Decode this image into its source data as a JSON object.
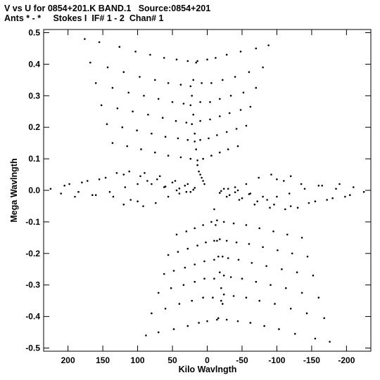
{
  "header": {
    "title_line1": "V vs U for 0854+201.K BAND.1   Source:0854+201",
    "title_line2": "Ants * - *     Stokes I  IF# 1 - 2  Chan# 1"
  },
  "chart_data": {
    "type": "scatter",
    "title": "V vs U for 0854+201.K BAND.1   Source:0854+201",
    "subtitle": "Ants * - *     Stokes I  IF# 1 - 2  Chan# 1",
    "xlabel": "Kilo Wavlngth",
    "ylabel": "Mega Wavlngth",
    "xlim": [
      235,
      -235
    ],
    "ylim": [
      -0.51,
      0.51
    ],
    "x_reversed": true,
    "x_ticks": [
      200,
      150,
      100,
      50,
      0,
      -50,
      -100,
      -150,
      -200
    ],
    "x_tick_labels": [
      "200",
      "150",
      "100",
      "50",
      "0",
      "-50",
      "-100",
      "-150",
      "-200"
    ],
    "y_ticks": [
      0.5,
      0.4,
      0.3,
      0.2,
      0.1,
      0.0,
      -0.1,
      -0.2,
      -0.3,
      -0.4,
      -0.5
    ],
    "y_tick_labels": [
      "0.5",
      "0.4",
      "0.3",
      "0.2",
      "0.1",
      "0.0",
      "-0.1",
      "-0.2",
      "-0.3",
      "-0.4",
      "-0.5"
    ],
    "grid": false,
    "marker_color": "#000000",
    "series": [
      {
        "values": [
          [
            176,
            0.48
          ],
          [
            155,
            0.47
          ],
          [
            126,
            0.455
          ],
          [
            103,
            0.44
          ],
          [
            82,
            0.43
          ],
          [
            62,
            0.42
          ],
          [
            44,
            0.415
          ],
          [
            28,
            0.41
          ],
          [
            16,
            0.405
          ],
          [
            14,
            0.41
          ],
          [
            0,
            0.415
          ],
          [
            -12,
            0.42
          ],
          [
            -28,
            0.43
          ],
          [
            -48,
            0.44
          ],
          [
            -70,
            0.45
          ],
          [
            -88,
            0.46
          ],
          [
            168,
            0.405
          ],
          [
            143,
            0.39
          ],
          [
            120,
            0.375
          ],
          [
            97,
            0.36
          ],
          [
            75,
            0.35
          ],
          [
            56,
            0.34
          ],
          [
            38,
            0.335
          ],
          [
            24,
            0.33
          ],
          [
            20,
            0.35
          ],
          [
            8,
            0.34
          ],
          [
            -6,
            0.34
          ],
          [
            -22,
            0.35
          ],
          [
            -40,
            0.36
          ],
          [
            -60,
            0.375
          ],
          [
            -80,
            0.39
          ],
          [
            160,
            0.34
          ],
          [
            136,
            0.325
          ],
          [
            113,
            0.31
          ],
          [
            91,
            0.3
          ],
          [
            70,
            0.29
          ],
          [
            50,
            0.28
          ],
          [
            34,
            0.275
          ],
          [
            24,
            0.27
          ],
          [
            10,
            0.28
          ],
          [
            -4,
            0.28
          ],
          [
            -18,
            0.29
          ],
          [
            -34,
            0.3
          ],
          [
            -52,
            0.31
          ],
          [
            -70,
            0.325
          ],
          [
            152,
            0.27
          ],
          [
            129,
            0.26
          ],
          [
            107,
            0.25
          ],
          [
            85,
            0.24
          ],
          [
            64,
            0.23
          ],
          [
            45,
            0.22
          ],
          [
            30,
            0.215
          ],
          [
            22,
            0.21
          ],
          [
            10,
            0.22
          ],
          [
            -4,
            0.225
          ],
          [
            -18,
            0.235
          ],
          [
            -32,
            0.245
          ],
          [
            -48,
            0.255
          ],
          [
            -62,
            0.265
          ],
          [
            144,
            0.21
          ],
          [
            122,
            0.2
          ],
          [
            101,
            0.19
          ],
          [
            80,
            0.18
          ],
          [
            60,
            0.17
          ],
          [
            42,
            0.165
          ],
          [
            28,
            0.16
          ],
          [
            18,
            0.155
          ],
          [
            10,
            0.16
          ],
          [
            -2,
            0.165
          ],
          [
            -14,
            0.175
          ],
          [
            -28,
            0.185
          ],
          [
            -42,
            0.195
          ],
          [
            -56,
            0.205
          ],
          [
            136,
            0.15
          ],
          [
            115,
            0.14
          ],
          [
            95,
            0.13
          ],
          [
            75,
            0.12
          ],
          [
            56,
            0.11
          ],
          [
            38,
            0.105
          ],
          [
            24,
            0.1
          ],
          [
            14,
            0.095
          ],
          [
            6,
            0.1
          ],
          [
            -6,
            0.11
          ],
          [
            -18,
            0.12
          ],
          [
            -30,
            0.13
          ],
          [
            -44,
            0.14
          ],
          [
            12,
            0.06
          ],
          [
            10,
            0.05
          ],
          [
            8,
            0.04
          ],
          [
            6,
            0.03
          ],
          [
            4,
            0.02
          ],
          [
            14,
            0.08
          ],
          [
            16,
            0.13
          ],
          [
            18,
            0.18
          ],
          [
            20,
            0.24
          ],
          [
            22,
            0.3
          ],
          [
            -10,
            -0.06
          ],
          [
            -12,
            -0.11
          ],
          [
            -14,
            -0.16
          ],
          [
            -16,
            -0.21
          ],
          [
            -18,
            -0.26
          ],
          [
            -20,
            -0.31
          ],
          [
            -22,
            -0.36
          ],
          [
            225,
            0.005
          ],
          [
            198,
            0.02
          ],
          [
            172,
            0.03
          ],
          [
            146,
            0.04
          ],
          [
            120,
            0.05
          ],
          [
            96,
            0.045
          ],
          [
            72,
            0.035
          ],
          [
            50,
            0.025
          ],
          [
            32,
            0.015
          ],
          [
            18,
            0.008
          ],
          [
            -225,
            -0.005
          ],
          [
            -198,
            -0.02
          ],
          [
            -172,
            -0.03
          ],
          [
            -146,
            -0.04
          ],
          [
            -120,
            -0.05
          ],
          [
            -96,
            -0.045
          ],
          [
            -72,
            -0.035
          ],
          [
            -50,
            -0.025
          ],
          [
            -32,
            -0.015
          ],
          [
            -18,
            -0.008
          ],
          [
            205,
            0.015
          ],
          [
            180,
            0.025
          ],
          [
            155,
            0.035
          ],
          [
            130,
            0.055
          ],
          [
            112,
            0.06
          ],
          [
            90,
            0.055
          ],
          [
            68,
            0.045
          ],
          [
            46,
            0.03
          ],
          [
            28,
            0.02
          ],
          [
            -205,
            -0.015
          ],
          [
            -180,
            -0.025
          ],
          [
            -155,
            -0.035
          ],
          [
            -130,
            -0.055
          ],
          [
            -112,
            -0.06
          ],
          [
            -90,
            -0.055
          ],
          [
            -68,
            -0.045
          ],
          [
            -46,
            -0.03
          ],
          [
            -28,
            -0.02
          ],
          [
            210,
            -0.01
          ],
          [
            185,
            -0.005
          ],
          [
            160,
            -0.015
          ],
          [
            135,
            -0.02
          ],
          [
            110,
            -0.03
          ],
          [
            92,
            -0.05
          ],
          [
            74,
            -0.04
          ],
          [
            56,
            -0.02
          ],
          [
            40,
            -0.01
          ],
          [
            24,
            -0.005
          ],
          [
            -210,
            0.01
          ],
          [
            -185,
            0.005
          ],
          [
            -160,
            0.015
          ],
          [
            -135,
            0.02
          ],
          [
            -110,
            0.03
          ],
          [
            -92,
            0.05
          ],
          [
            -74,
            0.04
          ],
          [
            -56,
            0.02
          ],
          [
            -40,
            0.01
          ],
          [
            -24,
            0.005
          ],
          [
            190,
            -0.02
          ],
          [
            165,
            -0.015
          ],
          [
            140,
            -0.005
          ],
          [
            118,
            0.01
          ],
          [
            100,
            0.02
          ],
          [
            86,
            0.03
          ],
          [
            62,
            0.01
          ],
          [
            44,
            0.0
          ],
          [
            30,
            -0.005
          ],
          [
            -190,
            0.02
          ],
          [
            -165,
            0.015
          ],
          [
            -140,
            0.005
          ],
          [
            -118,
            -0.01
          ],
          [
            -100,
            -0.02
          ],
          [
            -86,
            -0.03
          ],
          [
            -62,
            -0.01
          ],
          [
            -44,
            0.0
          ],
          [
            -30,
            0.005
          ],
          [
            60,
            0.012
          ],
          [
            40,
            0.006
          ],
          [
            20,
            0.002
          ],
          [
            -20,
            -0.002
          ],
          [
            -40,
            -0.006
          ],
          [
            -60,
            -0.012
          ],
          [
            80,
            0.02
          ],
          [
            -80,
            -0.02
          ],
          [
            100,
            -0.035
          ],
          [
            -100,
            0.035
          ],
          [
            120,
            -0.045
          ],
          [
            -120,
            0.045
          ],
          [
            -136,
            -0.15
          ],
          [
            -115,
            -0.14
          ],
          [
            -95,
            -0.13
          ],
          [
            -75,
            -0.12
          ],
          [
            -56,
            -0.11
          ],
          [
            -38,
            -0.105
          ],
          [
            -24,
            -0.1
          ],
          [
            -14,
            -0.095
          ],
          [
            -6,
            -0.1
          ],
          [
            6,
            -0.11
          ],
          [
            18,
            -0.12
          ],
          [
            30,
            -0.13
          ],
          [
            44,
            -0.14
          ],
          [
            -144,
            -0.21
          ],
          [
            -122,
            -0.2
          ],
          [
            -101,
            -0.19
          ],
          [
            -80,
            -0.18
          ],
          [
            -60,
            -0.17
          ],
          [
            -42,
            -0.165
          ],
          [
            -28,
            -0.16
          ],
          [
            -18,
            -0.155
          ],
          [
            -10,
            -0.16
          ],
          [
            2,
            -0.165
          ],
          [
            14,
            -0.175
          ],
          [
            28,
            -0.185
          ],
          [
            42,
            -0.195
          ],
          [
            56,
            -0.205
          ],
          [
            -152,
            -0.27
          ],
          [
            -129,
            -0.26
          ],
          [
            -107,
            -0.25
          ],
          [
            -85,
            -0.24
          ],
          [
            -64,
            -0.23
          ],
          [
            -45,
            -0.22
          ],
          [
            -30,
            -0.215
          ],
          [
            -22,
            -0.21
          ],
          [
            -10,
            -0.22
          ],
          [
            4,
            -0.225
          ],
          [
            18,
            -0.235
          ],
          [
            32,
            -0.245
          ],
          [
            48,
            -0.255
          ],
          [
            62,
            -0.265
          ],
          [
            -160,
            -0.34
          ],
          [
            -136,
            -0.325
          ],
          [
            -113,
            -0.31
          ],
          [
            -91,
            -0.3
          ],
          [
            -70,
            -0.29
          ],
          [
            -50,
            -0.28
          ],
          [
            -34,
            -0.275
          ],
          [
            -24,
            -0.27
          ],
          [
            -10,
            -0.28
          ],
          [
            4,
            -0.28
          ],
          [
            18,
            -0.29
          ],
          [
            34,
            -0.3
          ],
          [
            52,
            -0.31
          ],
          [
            70,
            -0.325
          ],
          [
            -168,
            -0.405
          ],
          [
            -143,
            -0.39
          ],
          [
            -120,
            -0.375
          ],
          [
            -97,
            -0.36
          ],
          [
            -75,
            -0.35
          ],
          [
            -56,
            -0.34
          ],
          [
            -38,
            -0.335
          ],
          [
            -24,
            -0.33
          ],
          [
            -20,
            -0.35
          ],
          [
            -8,
            -0.34
          ],
          [
            6,
            -0.34
          ],
          [
            22,
            -0.35
          ],
          [
            40,
            -0.36
          ],
          [
            60,
            -0.375
          ],
          [
            80,
            -0.39
          ],
          [
            -176,
            -0.48
          ],
          [
            -155,
            -0.47
          ],
          [
            -126,
            -0.455
          ],
          [
            -103,
            -0.44
          ],
          [
            -82,
            -0.43
          ],
          [
            -62,
            -0.42
          ],
          [
            -44,
            -0.415
          ],
          [
            -28,
            -0.41
          ],
          [
            -16,
            -0.405
          ],
          [
            -14,
            -0.41
          ],
          [
            0,
            -0.415
          ],
          [
            12,
            -0.42
          ],
          [
            28,
            -0.43
          ],
          [
            48,
            -0.44
          ],
          [
            70,
            -0.45
          ],
          [
            88,
            -0.46
          ]
        ]
      }
    ]
  }
}
